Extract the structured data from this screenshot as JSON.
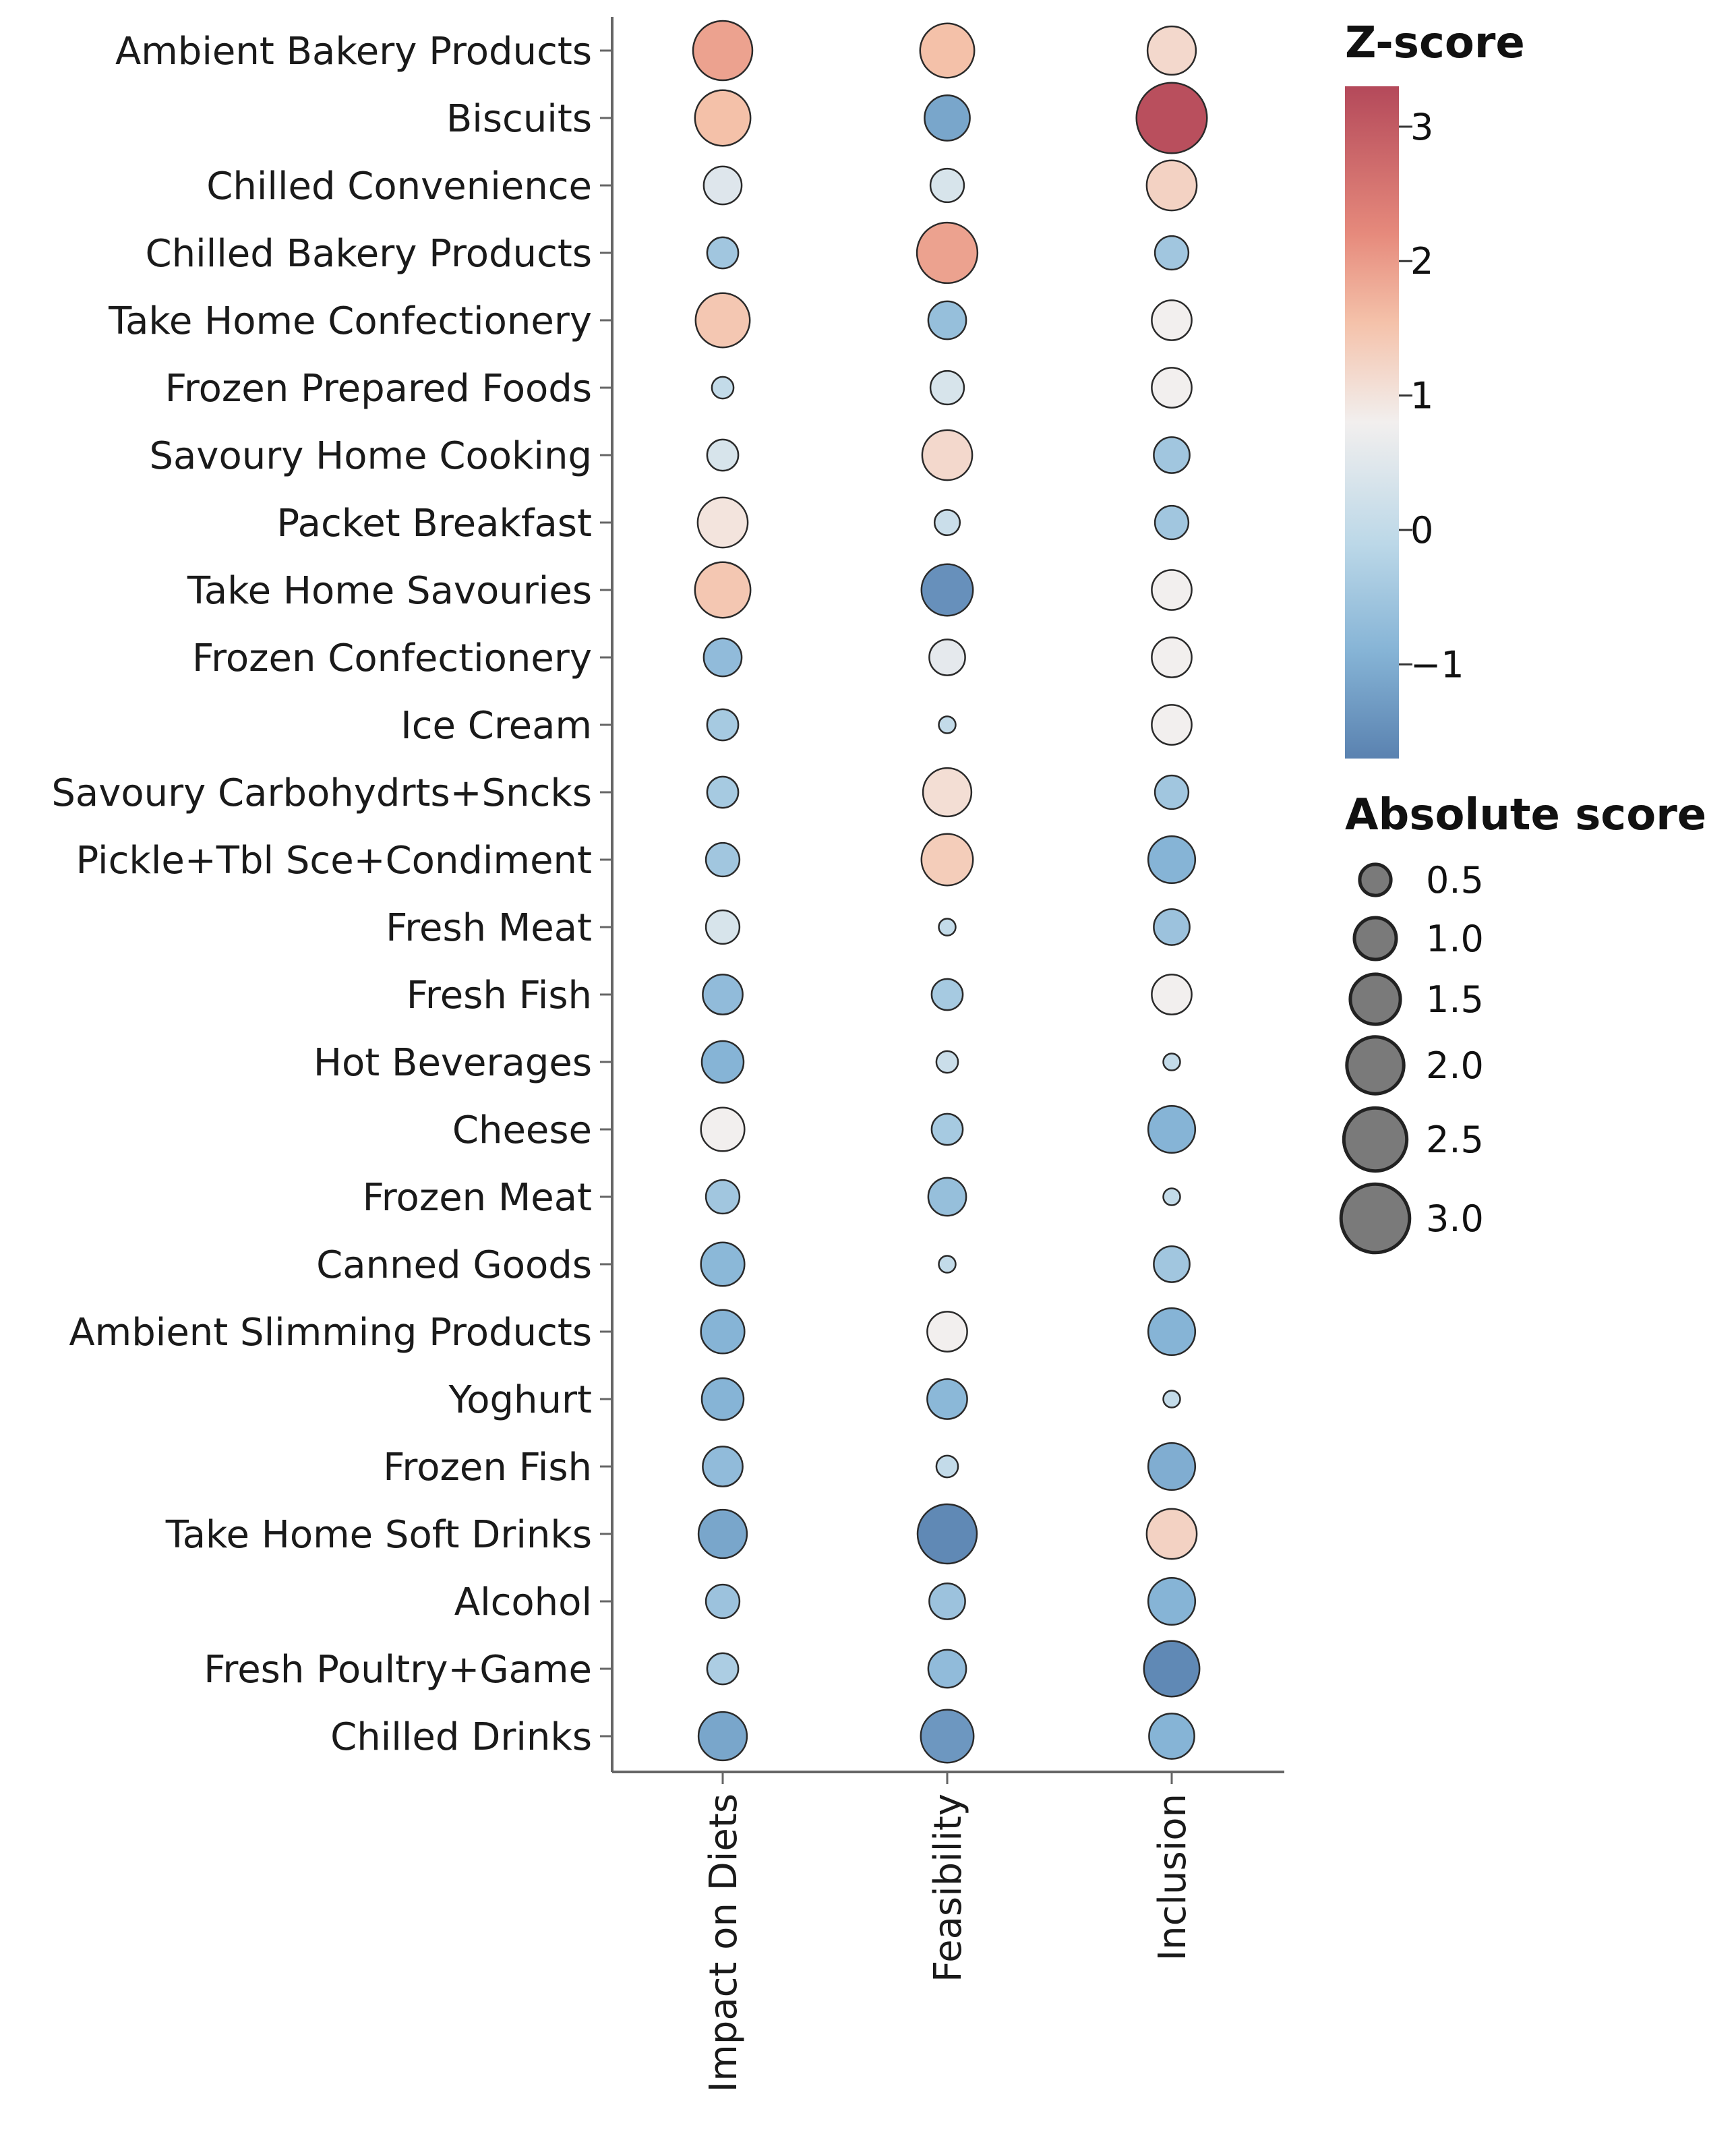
{
  "chart_data": {
    "type": "bubble-matrix",
    "categories": [
      "Ambient Bakery Products",
      "Biscuits",
      "Chilled Convenience",
      "Chilled Bakery Products",
      "Take Home Confectionery",
      "Frozen Prepared Foods",
      "Savoury Home Cooking",
      "Packet Breakfast",
      "Take Home Savouries",
      "Frozen Confectionery",
      "Ice Cream",
      "Savoury Carbohydrts+Sncks",
      "Pickle+Tbl Sce+Condiment",
      "Fresh Meat",
      "Fresh Fish",
      "Hot Beverages",
      "Cheese",
      "Frozen Meat",
      "Canned Goods",
      "Ambient Slimming Products",
      "Yoghurt",
      "Frozen Fish",
      "Take Home Soft Drinks",
      "Alcohol",
      "Fresh Poultry+Game",
      "Chilled Drinks"
    ],
    "metrics": [
      "Impact on Diets",
      "Feasibility",
      "Inclusion"
    ],
    "zscore": {
      "Impact on Diets": [
        2.0,
        1.6,
        0.5,
        -0.5,
        1.5,
        0.1,
        0.4,
        1.0,
        1.5,
        -0.8,
        -0.4,
        -0.4,
        -0.5,
        0.4,
        -0.8,
        -1.0,
        0.8,
        -0.5,
        -0.9,
        -1.0,
        -1.0,
        -0.8,
        -1.2,
        -0.6,
        -0.3,
        -1.2
      ],
      "Feasibility": [
        1.6,
        -1.2,
        0.4,
        2.0,
        -0.7,
        0.4,
        1.2,
        0.2,
        -1.5,
        0.6,
        0.1,
        1.1,
        1.4,
        0.1,
        -0.4,
        0.2,
        -0.4,
        -0.7,
        0.1,
        0.8,
        -0.9,
        0.1,
        -1.6,
        -0.6,
        -0.8,
        -1.4
      ],
      "Inclusion": [
        1.2,
        3.2,
        1.3,
        -0.5,
        0.8,
        0.8,
        -0.5,
        -0.5,
        0.8,
        0.8,
        0.8,
        -0.5,
        -1.0,
        -0.6,
        0.8,
        0.1,
        -1.0,
        0.1,
        -0.5,
        -1.0,
        0.1,
        -1.1,
        1.3,
        -1.0,
        -1.6,
        -1.0
      ]
    },
    "absolute": {
      "Impact on Diets": [
        2.2,
        1.9,
        0.8,
        0.5,
        1.8,
        0.2,
        0.5,
        1.5,
        1.9,
        0.8,
        0.5,
        0.5,
        0.6,
        0.6,
        0.9,
        1.0,
        1.1,
        0.6,
        1.1,
        1.1,
        1.0,
        0.9,
        1.4,
        0.6,
        0.5,
        1.4
      ],
      "Feasibility": [
        1.8,
        1.2,
        0.6,
        2.3,
        0.8,
        0.6,
        1.5,
        0.3,
        1.6,
        0.7,
        0.1,
        1.4,
        1.6,
        0.1,
        0.5,
        0.2,
        0.5,
        0.8,
        0.1,
        0.9,
        0.9,
        0.2,
        2.2,
        0.7,
        0.8,
        1.7
      ],
      "Inclusion": [
        1.4,
        3.2,
        1.5,
        0.6,
        0.9,
        0.9,
        0.7,
        0.6,
        0.9,
        0.9,
        0.9,
        0.6,
        1.3,
        0.7,
        0.9,
        0.1,
        1.3,
        0.1,
        0.7,
        1.3,
        0.1,
        1.3,
        1.5,
        1.3,
        1.9,
        1.2
      ]
    },
    "color_legend": {
      "title": "Z-score",
      "ticks": [
        "3",
        "2",
        "1",
        "0",
        "−1"
      ],
      "range": [
        -1.7,
        3.3
      ],
      "colors": {
        "high": "#b4495a",
        "mid_high": "#f3b49c",
        "mid": "#f0ecea",
        "mid_low": "#9ecae1",
        "low": "#5a82b0"
      }
    },
    "size_legend": {
      "title": "Absolute score",
      "values": [
        0.5,
        1.0,
        1.5,
        2.0,
        2.5,
        3.0
      ],
      "labels": [
        "0.5",
        "1.0",
        "1.5",
        "2.0",
        "2.5",
        "3.0"
      ]
    }
  }
}
